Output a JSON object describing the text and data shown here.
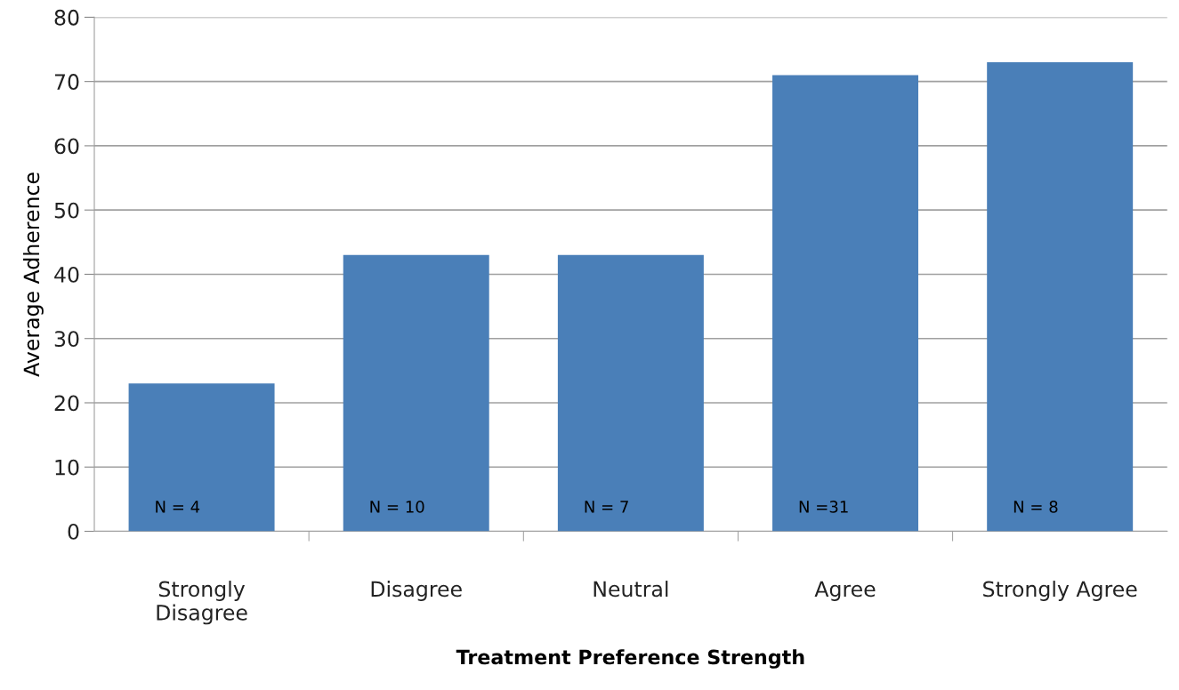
{
  "chart_data": {
    "type": "bar",
    "categories": [
      "Strongly\nDisagree",
      "Disagree",
      "Neutral",
      "Agree",
      "Strongly Agree"
    ],
    "values": [
      23,
      43,
      43,
      71,
      73
    ],
    "color": "#4a7fb8",
    "xlabel": "Treatment Preference Strength",
    "ylabel": "Average Adherence",
    "ylim": [
      0,
      80
    ],
    "yticks": [
      0,
      10,
      20,
      30,
      40,
      50,
      60,
      70,
      80
    ],
    "grid": "y",
    "legend": false,
    "annotations": [
      "N = 4",
      "N = 10",
      "N = 7",
      "N =31",
      "N = 8"
    ]
  }
}
